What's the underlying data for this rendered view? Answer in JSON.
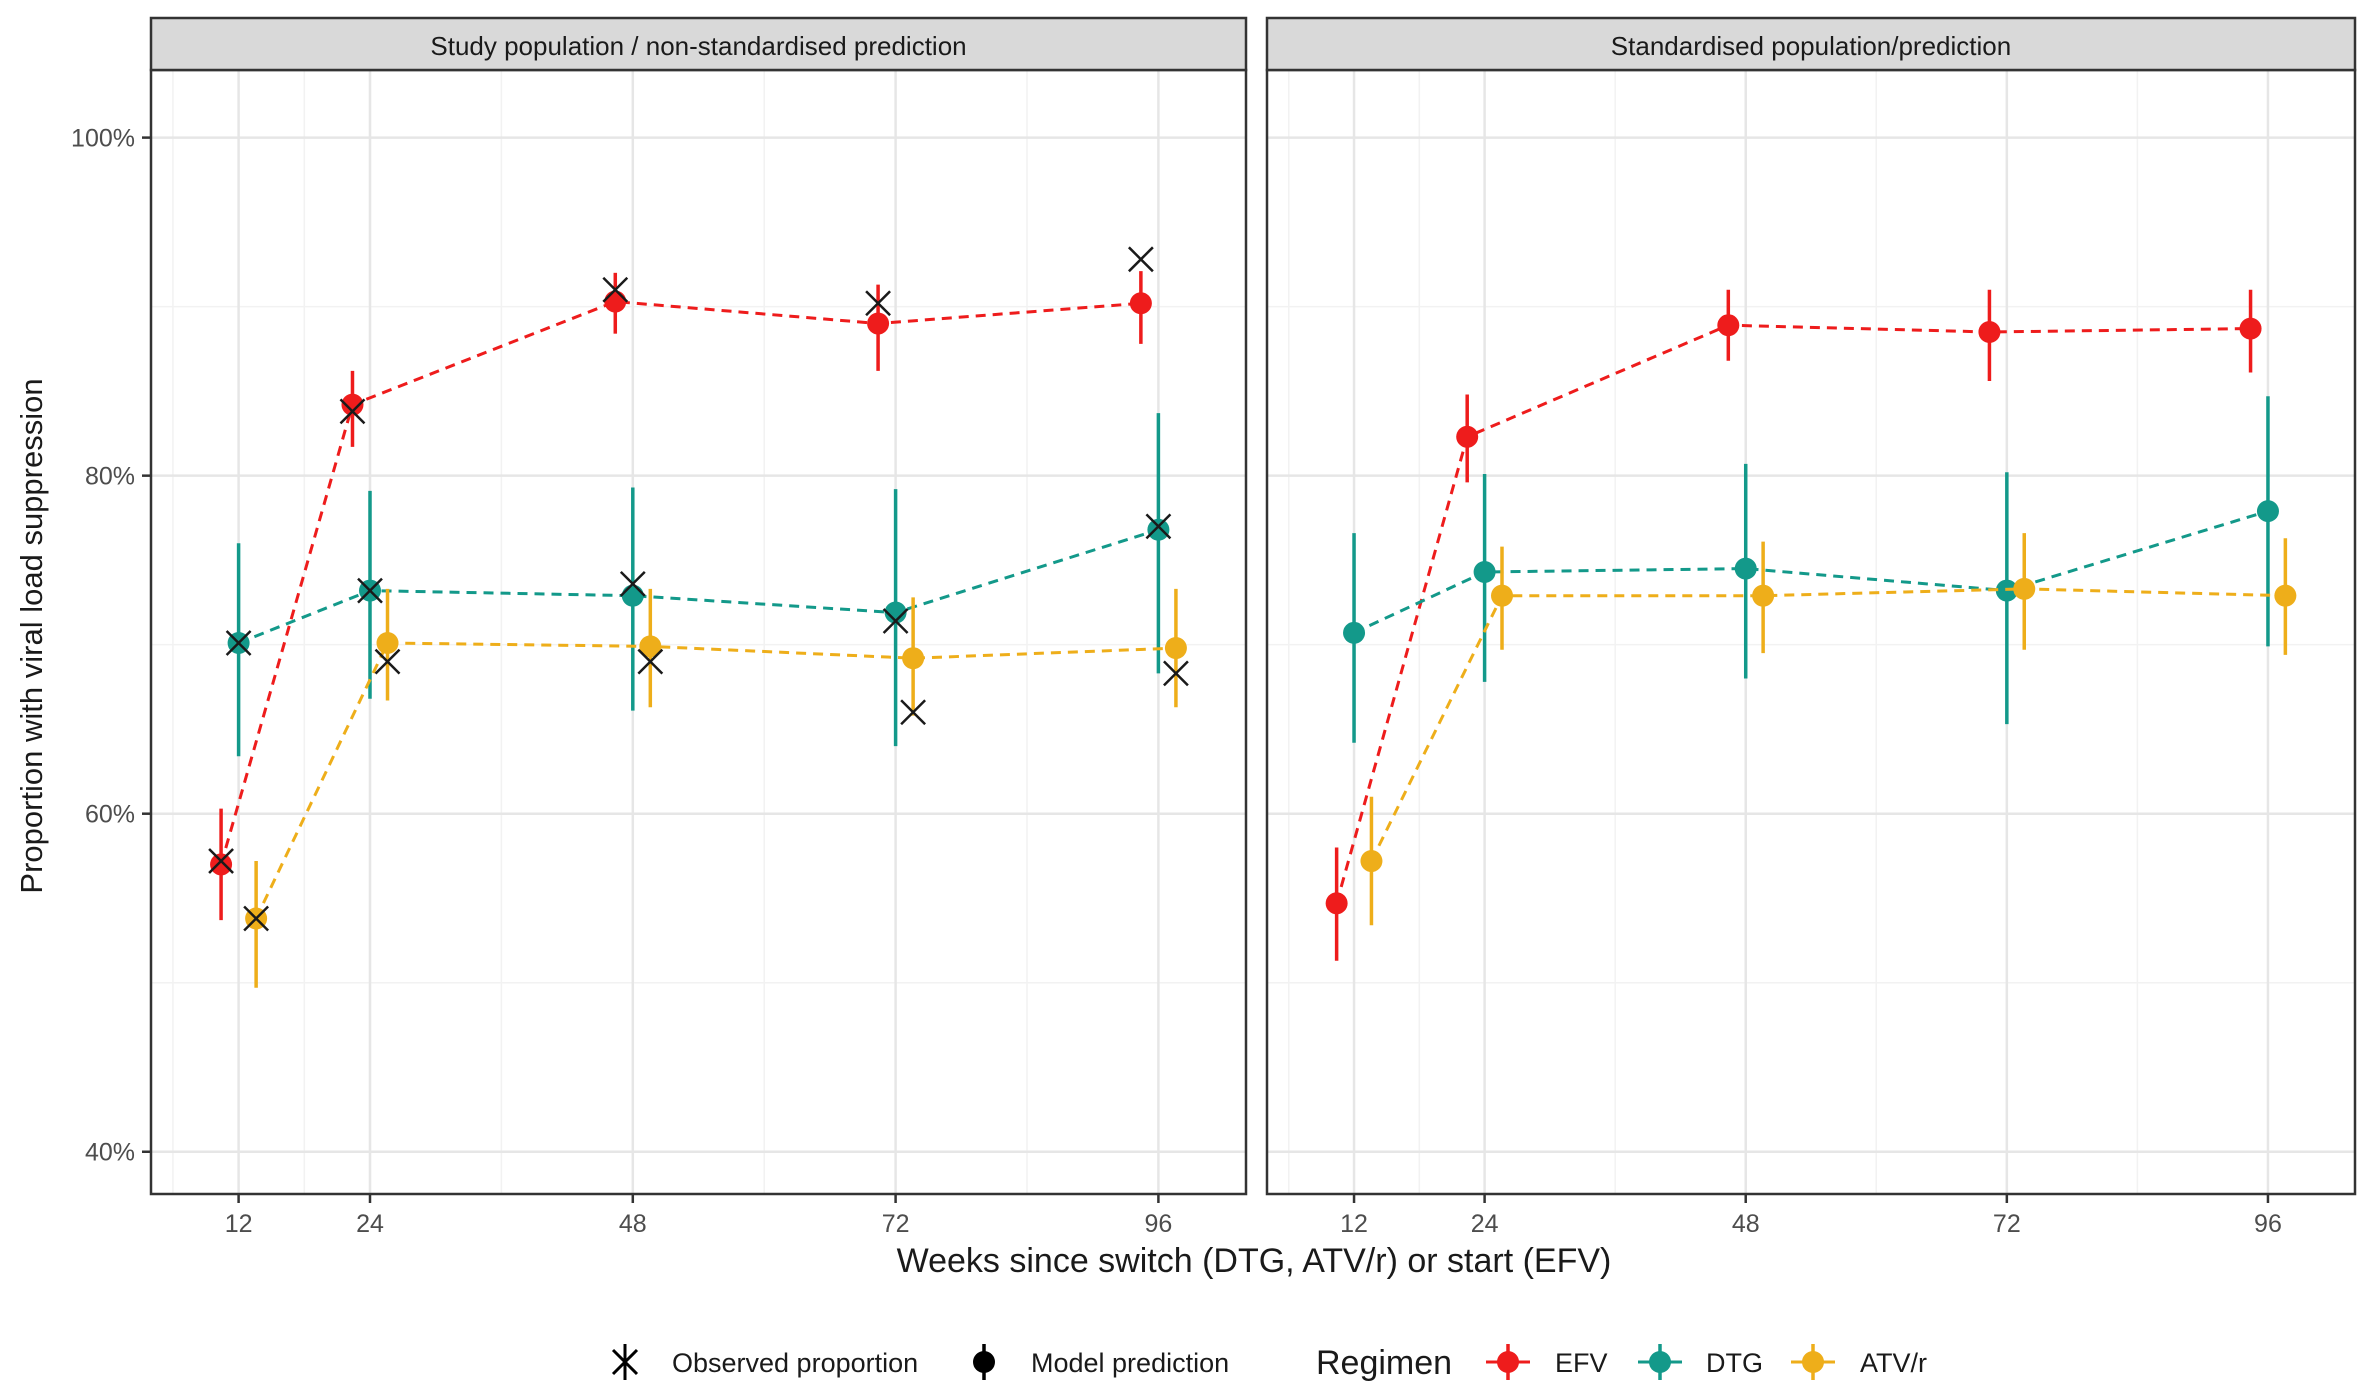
{
  "chart_data": {
    "type": "line",
    "ylabel": "Proportion with viral load suppression",
    "xlabel": "Weeks since switch (DTG, ATV/r) or start (EFV)",
    "x_ticks": [
      12,
      24,
      48,
      72,
      96
    ],
    "x_tick_labels": [
      "12",
      "24",
      "48",
      "72",
      "96"
    ],
    "y_ticks": [
      0.4,
      0.6,
      0.8,
      1.0
    ],
    "y_tick_labels": [
      "40%",
      "60%",
      "80%",
      "100%"
    ],
    "xlim": [
      4,
      104
    ],
    "ylim": [
      0.375,
      1.04
    ],
    "grid": true,
    "legend_position": "bottom",
    "legend": {
      "observed_label": "Observed proportion",
      "prediction_label": "Model prediction",
      "regimen_title": "Regimen",
      "regimens": [
        "EFV",
        "DTG",
        "ATV/r"
      ]
    },
    "colors": {
      "EFV": "#ee1c1c",
      "DTG": "#13998a",
      "ATV/r": "#eeae1a"
    },
    "offsets": {
      "EFV": -1.6,
      "DTG": 0,
      "ATV/r": 1.6
    },
    "panels": [
      {
        "title": "Study population / non-standardised prediction",
        "series": [
          {
            "name": "EFV",
            "x": [
              12,
              24,
              48,
              72,
              96
            ],
            "pred": [
              0.57,
              0.842,
              0.903,
              0.89,
              0.902
            ],
            "lo": [
              0.537,
              0.817,
              0.884,
              0.862,
              0.878
            ],
            "hi": [
              0.603,
              0.862,
              0.92,
              0.913,
              0.921
            ],
            "obs": [
              0.572,
              0.838,
              0.91,
              0.902,
              0.928
            ]
          },
          {
            "name": "DTG",
            "x": [
              12,
              24,
              48,
              72,
              96
            ],
            "pred": [
              0.701,
              0.732,
              0.729,
              0.719,
              0.768
            ],
            "lo": [
              0.634,
              0.668,
              0.661,
              0.64,
              0.683
            ],
            "hi": [
              0.76,
              0.791,
              0.793,
              0.792,
              0.837
            ],
            "obs": [
              0.701,
              0.732,
              0.736,
              0.714,
              0.77
            ]
          },
          {
            "name": "ATV/r",
            "x": [
              12,
              24,
              48,
              72,
              96
            ],
            "pred": [
              0.538,
              0.701,
              0.699,
              0.692,
              0.698
            ],
            "lo": [
              0.497,
              0.667,
              0.663,
              0.658,
              0.663
            ],
            "hi": [
              0.572,
              0.733,
              0.733,
              0.728,
              0.733
            ],
            "obs": [
              0.538,
              0.69,
              0.69,
              0.66,
              0.683
            ]
          }
        ]
      },
      {
        "title": "Standardised population/prediction",
        "series": [
          {
            "name": "EFV",
            "x": [
              12,
              24,
              48,
              72,
              96
            ],
            "pred": [
              0.547,
              0.823,
              0.889,
              0.885,
              0.887
            ],
            "lo": [
              0.513,
              0.796,
              0.868,
              0.856,
              0.861
            ],
            "hi": [
              0.58,
              0.848,
              0.91,
              0.91,
              0.91
            ],
            "obs": null
          },
          {
            "name": "DTG",
            "x": [
              12,
              24,
              48,
              72,
              96
            ],
            "pred": [
              0.707,
              0.743,
              0.745,
              0.732,
              0.779
            ],
            "lo": [
              0.642,
              0.678,
              0.68,
              0.653,
              0.699
            ],
            "hi": [
              0.766,
              0.801,
              0.807,
              0.802,
              0.847
            ],
            "obs": null
          },
          {
            "name": "ATV/r",
            "x": [
              12,
              24,
              48,
              72,
              96
            ],
            "pred": [
              0.572,
              0.729,
              0.729,
              0.733,
              0.729
            ],
            "lo": [
              0.534,
              0.697,
              0.695,
              0.697,
              0.694
            ],
            "hi": [
              0.61,
              0.758,
              0.761,
              0.766,
              0.763
            ],
            "obs": null
          }
        ]
      }
    ]
  }
}
